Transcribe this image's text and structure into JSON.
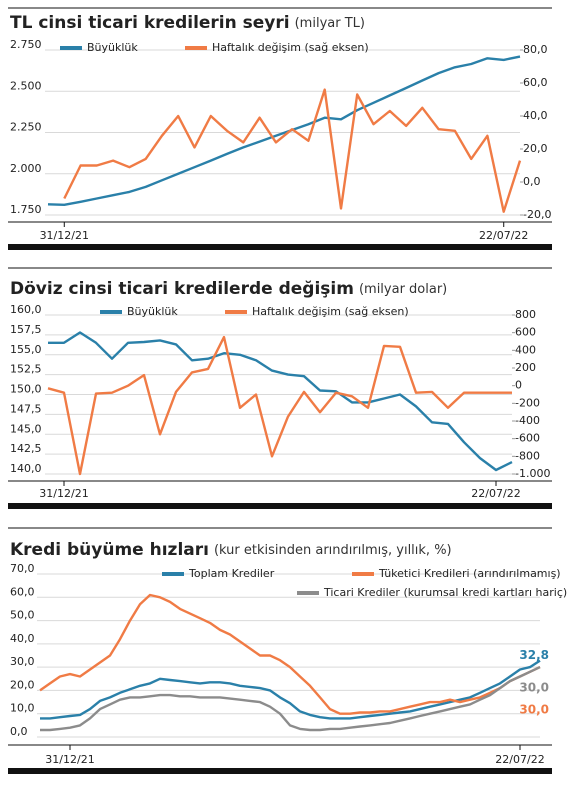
{
  "chart_data": [
    {
      "type": "line",
      "title": "TL cinsi ticari kredilerin seyri",
      "subtitle": "(milyar TL)",
      "categories": [
        null,
        "31/12/21",
        null,
        null,
        null,
        null,
        null,
        null,
        null,
        null,
        null,
        null,
        null,
        null,
        null,
        null,
        null,
        null,
        null,
        null,
        null,
        null,
        null,
        null,
        null,
        null,
        null,
        null,
        "22/07/22",
        null
      ],
      "series": [
        {
          "name": "Büyüklük",
          "color": "#2a80a9",
          "values": [
            1815,
            1812,
            1830,
            1850,
            1870,
            1890,
            1920,
            1960,
            2000,
            2040,
            2080,
            2120,
            2160,
            2195,
            2230,
            2265,
            2300,
            2340,
            2330,
            2385,
            2430,
            2475,
            2520,
            2565,
            2610,
            2645,
            2665,
            2700,
            2690,
            2710
          ]
        },
        {
          "name": "Haftalık değişim (sağ eksen)",
          "color": "#f07b45",
          "axis": "y2",
          "values": [
            null,
            -10,
            10,
            10,
            13,
            9,
            14,
            28,
            40,
            21,
            40,
            31,
            24,
            39,
            24,
            32,
            25,
            56,
            -16,
            53,
            35,
            43,
            34,
            45,
            32,
            31,
            14,
            28,
            -18,
            13
          ]
        }
      ],
      "ylim": [
        1750,
        2750
      ],
      "yticks": [
        {
          "value": 1750,
          "label": "1.750"
        },
        {
          "value": 2000,
          "label": "2.000"
        },
        {
          "value": 2250,
          "label": "2.250"
        },
        {
          "value": 2500,
          "label": "2.500"
        },
        {
          "value": 2750,
          "label": "2.750"
        }
      ],
      "y2lim": [
        -20,
        80
      ],
      "y2ticks": [
        {
          "value": -20,
          "label": "-20,0"
        },
        {
          "value": 0,
          "label": "0,0"
        },
        {
          "value": 20,
          "label": "20,0"
        },
        {
          "value": 40,
          "label": "40,0"
        },
        {
          "value": 60,
          "label": "60,0"
        },
        {
          "value": 80,
          "label": "80,0"
        }
      ],
      "grid": true
    },
    {
      "type": "line",
      "title": "Döviz cinsi ticari kredilerde değişim",
      "subtitle": "(milyar dolar)",
      "categories": [
        null,
        "31/12/21",
        null,
        null,
        null,
        null,
        null,
        null,
        null,
        null,
        null,
        null,
        null,
        null,
        null,
        null,
        null,
        null,
        null,
        null,
        null,
        null,
        null,
        null,
        null,
        null,
        null,
        null,
        "22/07/22",
        null
      ],
      "series": [
        {
          "name": "Büyüklük",
          "color": "#2a80a9",
          "values": [
            156.5,
            156.5,
            157.8,
            156.5,
            154.5,
            156.5,
            156.6,
            156.8,
            156.3,
            154.3,
            154.5,
            155.2,
            155,
            154.3,
            153,
            152.5,
            152.3,
            150.5,
            150.4,
            149,
            149,
            149.5,
            150,
            148.5,
            146.5,
            146.3,
            144,
            142,
            140.5,
            141.5
          ]
        },
        {
          "name": "Haftalık değişim (sağ eksen)",
          "color": "#f07b45",
          "axis": "y2",
          "values": [
            -30,
            -80,
            -1000,
            -90,
            -80,
            0,
            120,
            -550,
            -70,
            150,
            190,
            550,
            -250,
            -100,
            -800,
            -350,
            -70,
            -300,
            -80,
            -120,
            -250,
            450,
            440,
            -80,
            -70,
            -250,
            -80,
            -80,
            -80,
            -80
          ]
        }
      ],
      "ylim": [
        140,
        160
      ],
      "yticks": [
        {
          "value": 140,
          "label": "140,0"
        },
        {
          "value": 142.5,
          "label": "142,5"
        },
        {
          "value": 145,
          "label": "145,0"
        },
        {
          "value": 147.5,
          "label": "147,5"
        },
        {
          "value": 150,
          "label": "150,0"
        },
        {
          "value": 152.5,
          "label": "152,5"
        },
        {
          "value": 155,
          "label": "155,0"
        },
        {
          "value": 157.5,
          "label": "157,5"
        },
        {
          "value": 160,
          "label": "160,0"
        }
      ],
      "y2lim": [
        -1000,
        800
      ],
      "y2ticks": [
        {
          "value": -1000,
          "label": "-1.000"
        },
        -800,
        -600,
        -400,
        -200,
        0,
        200,
        400,
        600,
        800
      ],
      "grid": true
    },
    {
      "type": "line",
      "title": "Kredi büyüme hızları",
      "subtitle": "(kur etkisinden arındırılmış, yıllık, %)",
      "categories": [
        null,
        null,
        null,
        "31/12/21",
        null,
        null,
        null,
        null,
        null,
        null,
        null,
        null,
        null,
        null,
        null,
        null,
        null,
        null,
        null,
        null,
        null,
        null,
        null,
        null,
        null,
        null,
        null,
        null,
        null,
        null,
        null,
        null,
        null,
        null,
        null,
        null,
        null,
        null,
        null,
        null,
        null,
        null,
        null,
        null,
        null,
        null,
        null,
        null,
        "22/07/22",
        null,
        null
      ],
      "series": [
        {
          "name": "Toplam Krediler",
          "color": "#2a80a9",
          "values": [
            8,
            8,
            8.5,
            9,
            9.5,
            12,
            15.5,
            17,
            19,
            20.5,
            22,
            23,
            25,
            24.5,
            24,
            23.5,
            23,
            23.5,
            23.5,
            23,
            22,
            21.5,
            21,
            20,
            17,
            14.5,
            11,
            9.5,
            8.5,
            8,
            8,
            8,
            8.5,
            9,
            9.5,
            10,
            10.5,
            11,
            12,
            13,
            14,
            15,
            16,
            17,
            19,
            21,
            23,
            26,
            29,
            30,
            32.8
          ],
          "value_labels": [
            null,
            null,
            null,
            null,
            null,
            null,
            null,
            null,
            null,
            null,
            null,
            null,
            null,
            null,
            null,
            null,
            null,
            null,
            null,
            null,
            null,
            null,
            null,
            null,
            null,
            null,
            null,
            null,
            null,
            null,
            null,
            null,
            null,
            null,
            null,
            null,
            null,
            null,
            null,
            null,
            null,
            null,
            null,
            null,
            null,
            null,
            null,
            null,
            null,
            null,
            "32,8"
          ]
        },
        {
          "name": "Tüketici Kredileri (arındırılmamış)",
          "color": "#f07b45",
          "values": [
            20,
            23,
            26,
            27,
            26,
            29,
            32,
            35,
            42,
            50,
            57,
            61,
            60,
            58,
            55,
            53,
            51,
            49,
            46,
            44,
            41,
            38,
            35,
            35,
            33,
            30,
            26,
            22,
            17,
            12,
            10,
            10,
            10.5,
            10.5,
            11,
            11,
            12,
            13,
            14,
            15,
            15,
            16,
            15,
            16,
            17,
            19,
            21,
            24,
            26,
            28,
            30
          ],
          "value_labels": [
            null,
            null,
            null,
            null,
            null,
            null,
            null,
            null,
            null,
            null,
            null,
            null,
            null,
            null,
            null,
            null,
            null,
            null,
            null,
            null,
            null,
            null,
            null,
            null,
            null,
            null,
            null,
            null,
            null,
            null,
            null,
            null,
            null,
            null,
            null,
            null,
            null,
            null,
            null,
            null,
            null,
            null,
            null,
            null,
            null,
            null,
            null,
            null,
            null,
            null,
            "30,0"
          ]
        },
        {
          "name": "Ticari Krediler (kurumsal kredi kartları hariç)",
          "color": "#8c8c8c",
          "values": [
            3,
            3,
            3.5,
            4,
            5,
            8,
            12,
            14,
            16,
            17,
            17,
            17.5,
            18,
            18,
            17.5,
            17.5,
            17,
            17,
            17,
            16.5,
            16,
            15.5,
            15,
            13,
            10,
            5,
            3.5,
            3,
            3,
            3.5,
            3.5,
            4,
            4.5,
            5,
            5.5,
            6,
            7,
            8,
            9,
            10,
            11,
            12,
            13,
            14,
            16,
            18,
            21,
            24,
            26,
            28,
            30
          ],
          "value_labels": [
            null,
            null,
            null,
            null,
            null,
            null,
            null,
            null,
            null,
            null,
            null,
            null,
            null,
            null,
            null,
            null,
            null,
            null,
            null,
            null,
            null,
            null,
            null,
            null,
            null,
            null,
            null,
            null,
            null,
            null,
            null,
            null,
            null,
            null,
            null,
            null,
            null,
            null,
            null,
            null,
            null,
            null,
            null,
            null,
            null,
            null,
            null,
            null,
            null,
            null,
            "30,0"
          ]
        }
      ],
      "ylim": [
        0,
        70
      ],
      "yticks": [
        {
          "value": 0,
          "label": "0,0"
        },
        {
          "value": 10,
          "label": "10,0"
        },
        {
          "value": 20,
          "label": "20,0"
        },
        {
          "value": 30,
          "label": "30,0"
        },
        {
          "value": 40,
          "label": "40,0"
        },
        {
          "value": 50,
          "label": "50,0"
        },
        {
          "value": 60,
          "label": "60,0"
        },
        {
          "value": 70,
          "label": "70,0"
        }
      ],
      "grid": true
    }
  ]
}
